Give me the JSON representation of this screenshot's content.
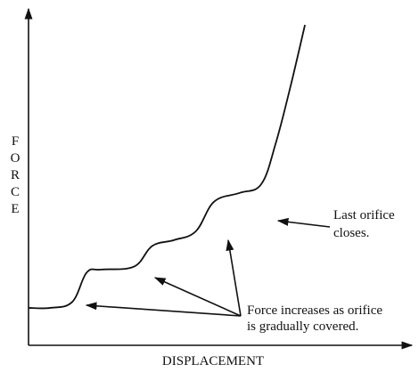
{
  "chart_data": {
    "type": "line",
    "xlabel": "DISPLACEMENT",
    "ylabel": "FORCE",
    "grid": false,
    "legend": "none",
    "axis_ticks": "none",
    "series": [
      {
        "points": [
          [
            0.0,
            0.04
          ],
          [
            0.06,
            0.04
          ],
          [
            0.12,
            0.06
          ],
          [
            0.16,
            0.16
          ],
          [
            0.2,
            0.17
          ],
          [
            0.29,
            0.18
          ],
          [
            0.34,
            0.25
          ],
          [
            0.4,
            0.27
          ],
          [
            0.46,
            0.3
          ],
          [
            0.51,
            0.4
          ],
          [
            0.58,
            0.43
          ],
          [
            0.64,
            0.46
          ],
          [
            0.68,
            0.6
          ],
          [
            0.72,
            0.79
          ],
          [
            0.76,
            1.0
          ]
        ]
      }
    ],
    "annotations": [
      {
        "text_lines": [
          "Last orifice",
          "closes."
        ]
      },
      {
        "text_lines": [
          "Force increases as orifice",
          "is gradually covered."
        ]
      }
    ],
    "colors": {
      "line": "#111111",
      "axis": "#111111",
      "text": "#111111"
    }
  }
}
